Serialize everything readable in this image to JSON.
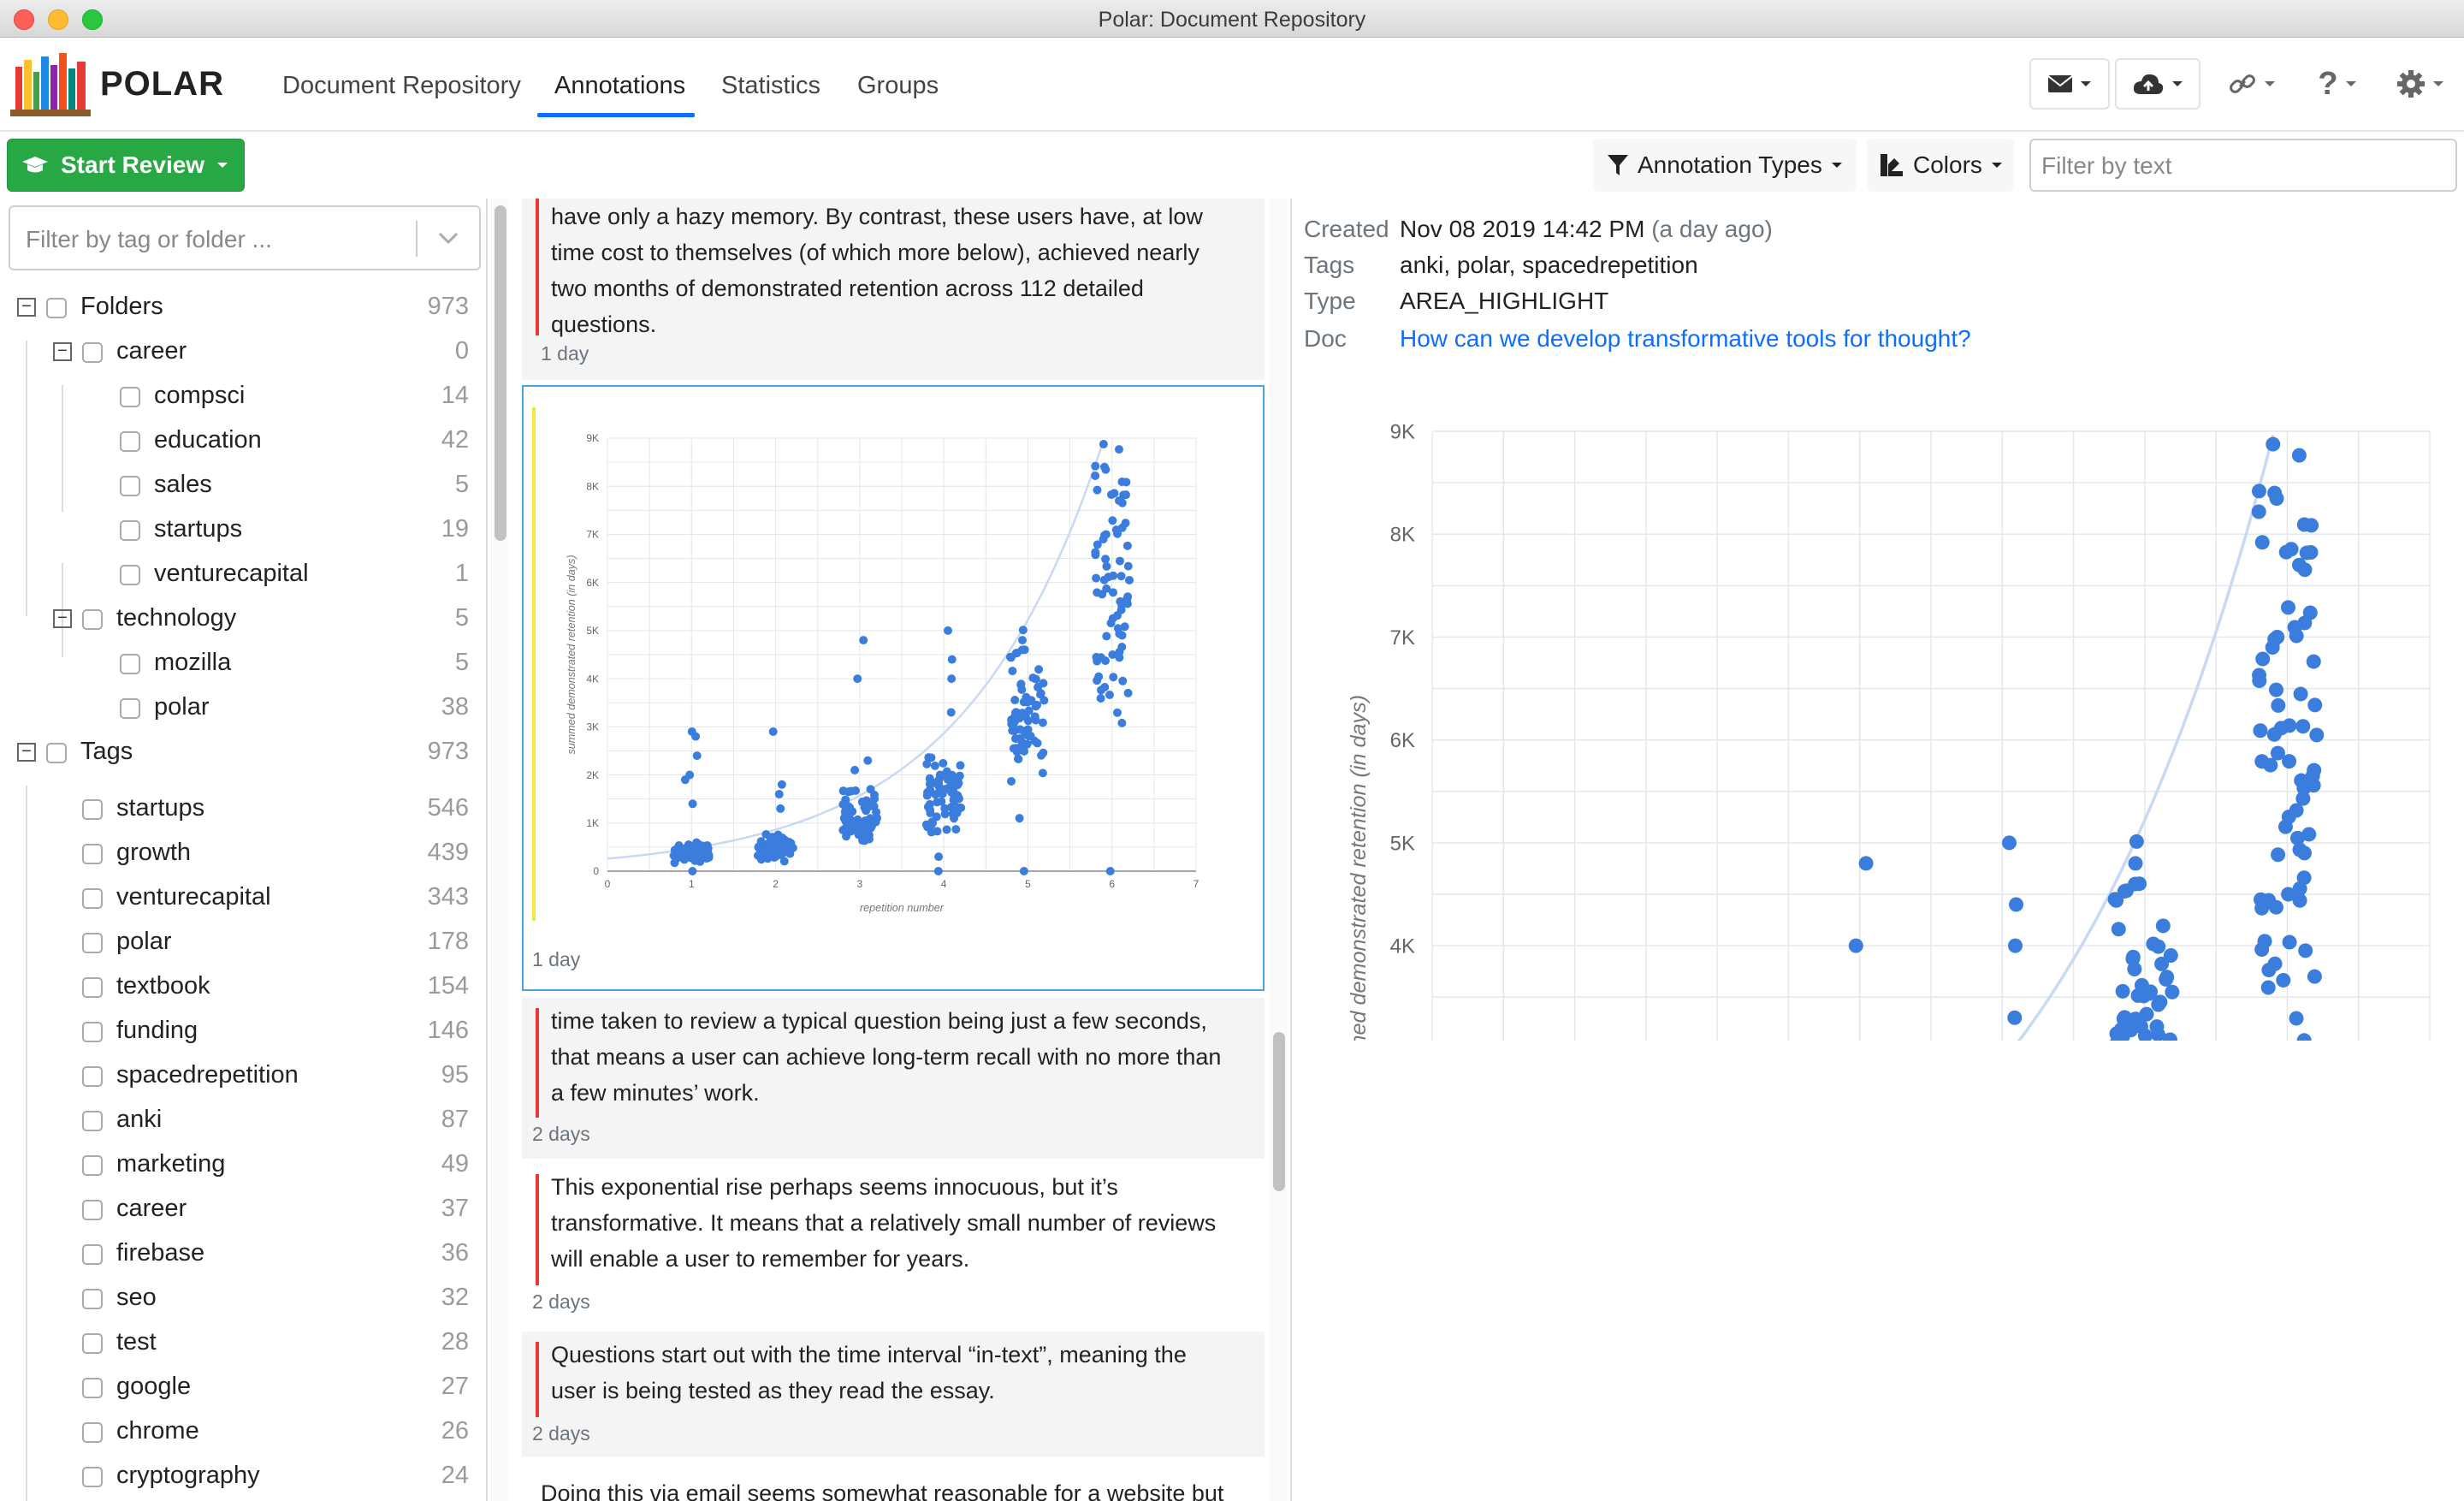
{
  "window": {
    "title": "Polar: Document Repository"
  },
  "brand": {
    "name": "POLAR"
  },
  "nav": {
    "tabs": [
      {
        "label": "Document Repository"
      },
      {
        "label": "Annotations",
        "active": true
      },
      {
        "label": "Statistics"
      },
      {
        "label": "Groups"
      }
    ]
  },
  "toolbar": {
    "start_review": "Start Review",
    "annotation_types": "Annotation Types",
    "colors": "Colors",
    "filter_placeholder": "Filter by text"
  },
  "sidebar": {
    "filter_placeholder": "Filter by tag or folder ...",
    "folders": {
      "label": "Folders",
      "count": "973",
      "children": [
        {
          "label": "career",
          "count": "0",
          "children": [
            {
              "label": "compsci",
              "count": "14"
            },
            {
              "label": "education",
              "count": "42"
            },
            {
              "label": "sales",
              "count": "5"
            },
            {
              "label": "startups",
              "count": "19"
            },
            {
              "label": "venturecapital",
              "count": "1"
            }
          ]
        },
        {
          "label": "technology",
          "count": "5",
          "children": [
            {
              "label": "mozilla",
              "count": "5"
            },
            {
              "label": "polar",
              "count": "38"
            }
          ]
        }
      ]
    },
    "tags": {
      "label": "Tags",
      "count": "973",
      "items": [
        {
          "label": "startups",
          "count": "546"
        },
        {
          "label": "growth",
          "count": "439"
        },
        {
          "label": "venturecapital",
          "count": "343"
        },
        {
          "label": "polar",
          "count": "178"
        },
        {
          "label": "textbook",
          "count": "154"
        },
        {
          "label": "funding",
          "count": "146"
        },
        {
          "label": "spacedrepetition",
          "count": "95"
        },
        {
          "label": "anki",
          "count": "87"
        },
        {
          "label": "marketing",
          "count": "49"
        },
        {
          "label": "career",
          "count": "37"
        },
        {
          "label": "firebase",
          "count": "36"
        },
        {
          "label": "seo",
          "count": "32"
        },
        {
          "label": "test",
          "count": "28"
        },
        {
          "label": "google",
          "count": "27"
        },
        {
          "label": "chrome",
          "count": "26"
        },
        {
          "label": "cryptography",
          "count": "24"
        }
      ]
    }
  },
  "annotations": [
    {
      "text_lines": [
        "have only a hazy memory. By contrast, these users have, at low",
        "time cost to themselves (of which more below), achieved nearly",
        "two months of demonstrated retention across 112 detailed",
        "questions."
      ],
      "age": "1 day",
      "color": "#e53935"
    },
    {
      "type": "image",
      "age": "1 day",
      "color": "#f5e642",
      "selected": true
    },
    {
      "text_lines": [
        "time taken to review a typical question being just a few seconds,",
        "that means a user can achieve long-term recall with no more than",
        "a few minutes’ work."
      ],
      "age": "2 days",
      "color": "#e53935"
    },
    {
      "text_lines": [
        "This exponential rise perhaps seems innocuous, but it’s",
        "transformative. It means that a relatively small number of reviews",
        "will enable a user to remember for years."
      ],
      "age": "2 days",
      "color": "#e53935"
    },
    {
      "text_lines": [
        "Questions start out with the time interval “in-text”, meaning the",
        "user is being tested as they read the essay."
      ],
      "age": "2 days",
      "color": "#e53935"
    },
    {
      "text_lines": [
        "Doing this via email seems somewhat reasonable for a website but"
      ],
      "age": "",
      "color": "#e53935"
    }
  ],
  "detail": {
    "labels": {
      "created": "Created",
      "tags": "Tags",
      "type": "Type",
      "doc": "Doc"
    },
    "created": "Nov 08 2019 14:42 PM",
    "created_relative": "(a day ago)",
    "tags": "anki, polar, spacedrepetition",
    "type": "AREA_HIGHLIGHT",
    "doc": "How can we develop transformative tools for thought?"
  },
  "chart_data": {
    "type": "scatter",
    "xlabel": "repetition number",
    "ylabel": "summed demonstrated retention (in days)",
    "xlim": [
      0,
      7
    ],
    "ylim": [
      0,
      9000
    ],
    "xticks": [
      "0",
      "1",
      "2",
      "3",
      "4",
      "5",
      "6",
      "7"
    ],
    "yticks": [
      "0",
      "1K",
      "2K",
      "3K",
      "4K",
      "5K",
      "6K",
      "7K",
      "8K",
      "9K"
    ],
    "grid": true,
    "point_color": "#3b7ddd",
    "trend": "exponential",
    "clusters": [
      {
        "x": 1,
        "median": 400,
        "outliers": [
          0,
          1400,
          1900,
          2000,
          2400,
          2800,
          2900
        ]
      },
      {
        "x": 2,
        "median": 500,
        "outliers": [
          1300,
          1600,
          1800,
          2900
        ]
      },
      {
        "x": 3,
        "median": 1100,
        "outliers": [
          2100,
          2300,
          4000,
          4800
        ]
      },
      {
        "x": 4,
        "median": 1600,
        "outliers": [
          0,
          300,
          2000,
          3300,
          4000,
          4400,
          5000
        ]
      },
      {
        "x": 5,
        "median": 3300,
        "outliers": [
          0,
          1100,
          4600,
          4800
        ]
      },
      {
        "x": 6,
        "median": 6000,
        "outliers": [
          0,
          4500,
          7000,
          7700,
          8400
        ]
      }
    ]
  }
}
